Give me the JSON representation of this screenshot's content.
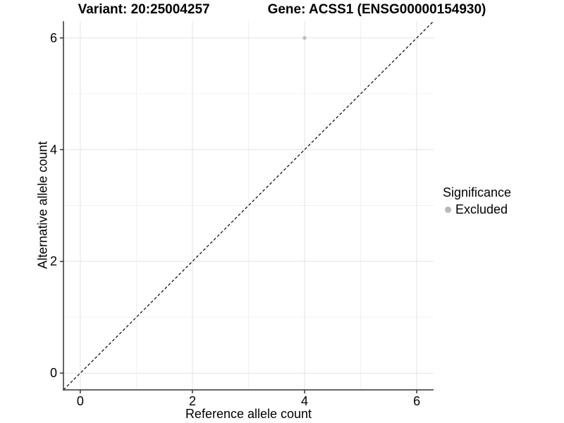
{
  "chart_data": {
    "type": "scatter",
    "title_left": "Variant: 20:25004257",
    "title_right": "Gene: ACSS1 (ENSG00000154930)",
    "xlabel": "Reference allele count",
    "ylabel": "Alternative allele count",
    "xlim": [
      -0.3,
      6.3
    ],
    "ylim": [
      -0.3,
      6.3
    ],
    "x_ticks": [
      0,
      2,
      4,
      6
    ],
    "y_ticks": [
      0,
      2,
      4,
      6
    ],
    "x_minor_ticks": [
      1,
      3,
      5
    ],
    "y_minor_ticks": [
      1,
      3,
      5
    ],
    "grid": true,
    "points": [
      {
        "x": 4,
        "y": 6,
        "series": "Excluded"
      }
    ],
    "reference_line": {
      "type": "identity",
      "slope": 1,
      "intercept": 0,
      "style": "dashed",
      "color": "#000000"
    },
    "legend": {
      "title": "Significance",
      "position": "right",
      "entries": [
        {
          "label": "Excluded",
          "color": "#b8b8b8"
        }
      ]
    },
    "colors": {
      "point": "#bcbcbc",
      "grid_major": "#e3e3e3",
      "grid_minor": "#f0f0f0",
      "axis": "#333333",
      "background": "#ffffff"
    }
  }
}
